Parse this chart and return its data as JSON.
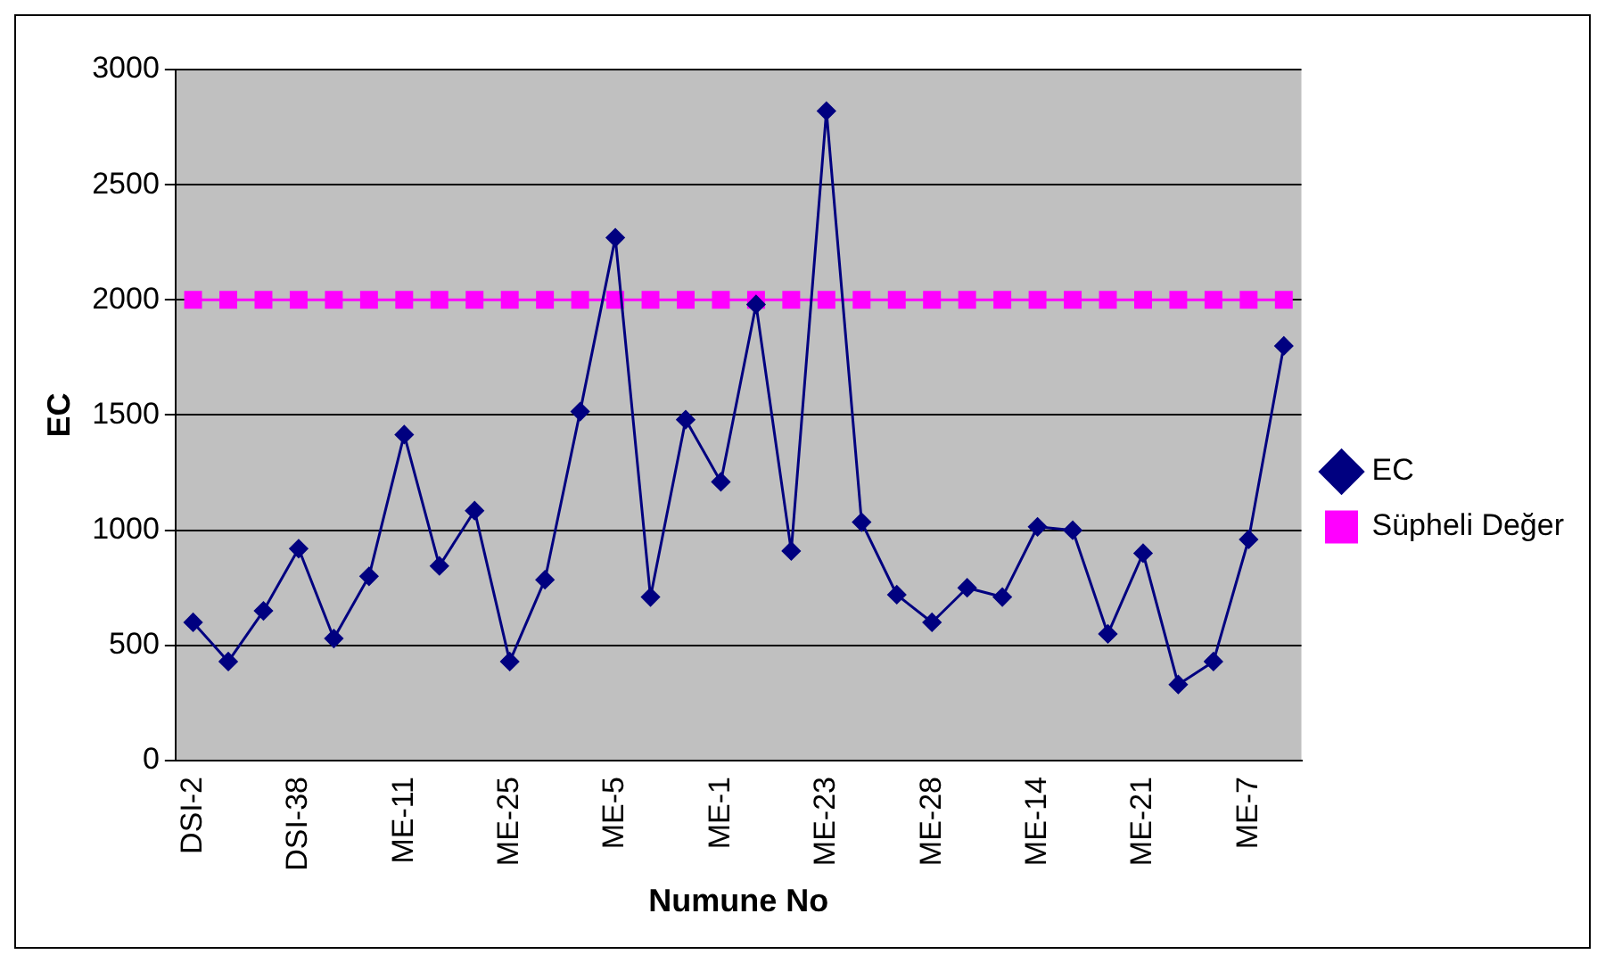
{
  "chart_data": {
    "type": "line",
    "xlabel": "Numune No",
    "ylabel": "EC",
    "categories": [
      "DSI-2",
      null,
      null,
      "DSI-38",
      null,
      null,
      "ME-11",
      null,
      null,
      "ME-25",
      null,
      null,
      "ME-5",
      null,
      null,
      "ME-1",
      null,
      null,
      "ME-23",
      null,
      null,
      "ME-28",
      null,
      null,
      "ME-14",
      null,
      null,
      "ME-21",
      null,
      null,
      "ME-7",
      null
    ],
    "series": [
      {
        "name": "EC",
        "color": "#000080",
        "marker": "diamond",
        "values": [
          600,
          430,
          650,
          920,
          530,
          800,
          1415,
          845,
          1085,
          430,
          785,
          1515,
          2270,
          710,
          1480,
          1210,
          1980,
          910,
          2820,
          1035,
          720,
          600,
          750,
          710,
          1015,
          1000,
          550,
          900,
          330,
          430,
          960,
          1800
        ]
      },
      {
        "name": "Süpheli Değer",
        "color": "#ff00ff",
        "marker": "square",
        "values": [
          2000,
          2000,
          2000,
          2000,
          2000,
          2000,
          2000,
          2000,
          2000,
          2000,
          2000,
          2000,
          2000,
          2000,
          2000,
          2000,
          2000,
          2000,
          2000,
          2000,
          2000,
          2000,
          2000,
          2000,
          2000,
          2000,
          2000,
          2000,
          2000,
          2000,
          2000,
          2000
        ]
      }
    ],
    "ylim": [
      0,
      3000
    ],
    "yticks": [
      0,
      500,
      1000,
      1500,
      2000,
      2500,
      3000
    ],
    "grid": "y",
    "legend": "right"
  }
}
